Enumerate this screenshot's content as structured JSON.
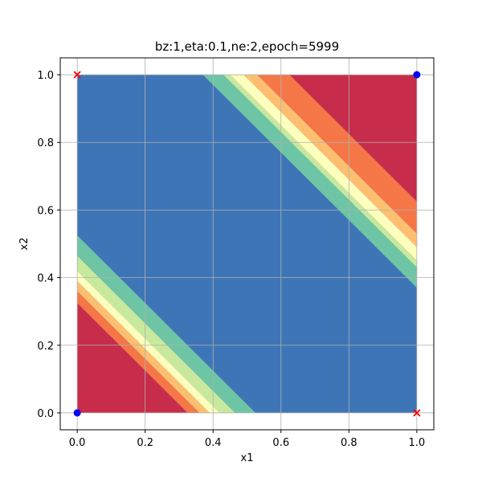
{
  "chart_data": {
    "type": "contour",
    "title": "bz:1,eta:0.1,ne:2,epoch=5999",
    "xlabel": "x1",
    "ylabel": "x2",
    "xlim": [
      -0.05,
      1.05
    ],
    "ylim": [
      -0.05,
      1.05
    ],
    "plot_domain": [
      0,
      1
    ],
    "xticks": [
      "0.0",
      "0.2",
      "0.4",
      "0.6",
      "0.8",
      "1.0"
    ],
    "yticks": [
      "0.0",
      "0.2",
      "0.4",
      "0.6",
      "0.8",
      "1.0"
    ],
    "xtick_values": [
      0,
      0.2,
      0.4,
      0.6,
      0.8,
      1.0
    ],
    "ytick_values": [
      0,
      0.2,
      0.4,
      0.6,
      0.8,
      1.0
    ],
    "grid": true,
    "colormap": "Spectral",
    "background_color": "#3e75b6",
    "contour_bands_lower": [
      {
        "from": 0.0,
        "to": 0.325,
        "color": "#c72d4a"
      },
      {
        "from": 0.325,
        "to": 0.36,
        "color": "#f57748"
      },
      {
        "from": 0.36,
        "to": 0.39,
        "color": "#fdbf6f"
      },
      {
        "from": 0.39,
        "to": 0.42,
        "color": "#fefebd"
      },
      {
        "from": 0.42,
        "to": 0.465,
        "color": "#c8e99d"
      },
      {
        "from": 0.465,
        "to": 0.525,
        "color": "#6dc5a5"
      }
    ],
    "contour_bands_upper": [
      {
        "from": 1.625,
        "to": 2.0,
        "color": "#c72d4a"
      },
      {
        "from": 1.53,
        "to": 1.625,
        "color": "#f57748"
      },
      {
        "from": 1.49,
        "to": 1.53,
        "color": "#fdbf6f"
      },
      {
        "from": 1.45,
        "to": 1.49,
        "color": "#fefebd"
      },
      {
        "from": 1.43,
        "to": 1.45,
        "color": "#c8e99d"
      },
      {
        "from": 1.37,
        "to": 1.43,
        "color": "#6dc5a5"
      }
    ],
    "points": [
      {
        "x": 0,
        "y": 1,
        "marker": "x",
        "color": "#ff0000"
      },
      {
        "x": 1,
        "y": 0,
        "marker": "x",
        "color": "#ff0000"
      },
      {
        "x": 0,
        "y": 0,
        "marker": "o",
        "color": "#0000ff"
      },
      {
        "x": 1,
        "y": 1,
        "marker": "o",
        "color": "#0000ff"
      }
    ]
  }
}
